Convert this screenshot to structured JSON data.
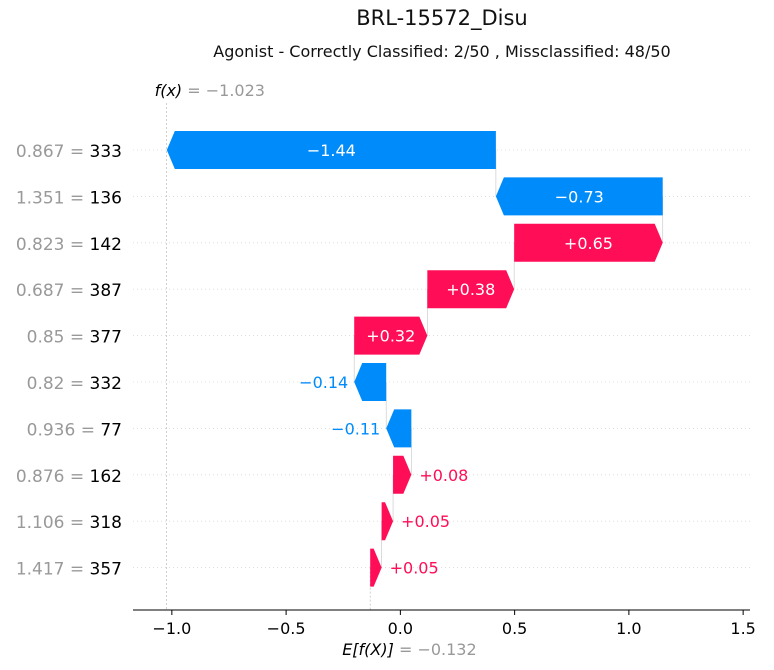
{
  "chart_data": {
    "type": "waterfall",
    "title": "BRL-15572_Disu",
    "subtitle": "Agonist - Correctly Classified: 2/50 , Missclassified: 48/50",
    "fx_label": "f(x)",
    "fx_value_text": "= −1.023",
    "fx": -1.023,
    "base_label": "E[f(X)]",
    "base_value_text": "= −0.132",
    "base_value": -0.132,
    "xlim": [
      -1.17,
      1.53
    ],
    "xticks": [
      -1.0,
      -0.5,
      0.0,
      0.5,
      1.0,
      1.5
    ],
    "xtick_labels": [
      "−1.0",
      "−0.5",
      "0.0",
      "0.5",
      "1.0",
      "1.5"
    ],
    "grid": "horizontal dotted",
    "features": [
      {
        "value": "0.867",
        "name": "333",
        "contribution": -1.44,
        "label": "−1.44"
      },
      {
        "value": "1.351",
        "name": "136",
        "contribution": -0.73,
        "label": "−0.73"
      },
      {
        "value": "0.823",
        "name": "142",
        "contribution": 0.65,
        "label": "+0.65"
      },
      {
        "value": "0.687",
        "name": "387",
        "contribution": 0.38,
        "label": "+0.38"
      },
      {
        "value": "0.85",
        "name": "377",
        "contribution": 0.32,
        "label": "+0.32"
      },
      {
        "value": "0.82",
        "name": "332",
        "contribution": -0.14,
        "label": "−0.14"
      },
      {
        "value": "0.936",
        "name": "77",
        "contribution": -0.11,
        "label": "−0.11"
      },
      {
        "value": "0.876",
        "name": "162",
        "contribution": 0.08,
        "label": "+0.08"
      },
      {
        "value": "1.106",
        "name": "318",
        "contribution": 0.05,
        "label": "+0.05"
      },
      {
        "value": "1.417",
        "name": "357",
        "contribution": 0.05,
        "label": "+0.05"
      }
    ],
    "colors": {
      "positive": "#ff0d57",
      "negative": "#008bfb",
      "value_gray": "#999999",
      "text": "#000000"
    }
  }
}
